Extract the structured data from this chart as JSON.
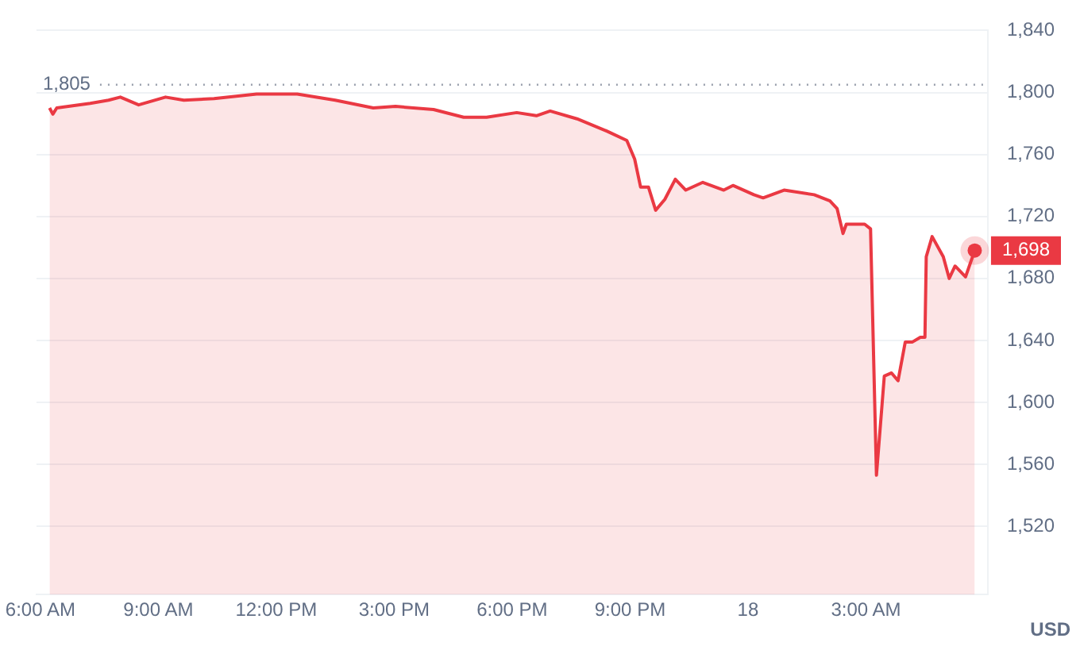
{
  "chart_data": {
    "type": "area",
    "x": [
      "--01-17T06:14",
      "--01-17T06:19",
      "--01-17T06:25",
      "--01-17T07:16",
      "--01-17T07:44",
      "--01-17T08:02",
      "--01-17T08:30",
      "--01-17T09:11",
      "--01-17T09:39",
      "--01-17T10:25",
      "--01-17T11:30",
      "--01-17T12:32",
      "--01-17T13:30",
      "--01-17T14:28",
      "--01-17T15:02",
      "--01-17T16:00",
      "--01-17T16:46",
      "--01-17T17:21",
      "--01-17T18:07",
      "--01-17T18:37",
      "--01-17T18:58",
      "--01-17T19:39",
      "--01-17T20:25",
      "--01-17T20:55",
      "--01-17T21:07",
      "--01-17T21:16",
      "--01-17T21:28",
      "--01-17T21:39",
      "--01-17T21:53",
      "--01-17T22:09",
      "--01-17T22:25",
      "--01-17T22:51",
      "--01-17T23:23",
      "--01-17T23:37",
      "--01-18T00:09",
      "--01-18T00:23",
      "--01-18T00:55",
      "--01-18T01:41",
      "--01-18T02:05",
      "--01-18T02:16",
      "--01-18T02:25",
      "--01-18T02:30",
      "--01-18T02:58",
      "--01-18T03:07",
      "--01-18T03:16",
      "--01-18T03:28",
      "--01-18T03:39",
      "--01-18T03:49",
      "--01-18T04:00",
      "--01-18T04:11",
      "--01-18T04:23",
      "--01-18T04:30",
      "--01-18T04:32",
      "--01-18T04:41",
      "--01-18T04:58",
      "--01-18T05:07",
      "--01-18T05:16",
      "--01-18T05:32",
      "--01-18T05:46"
    ],
    "series": [
      {
        "color": "#ea3943",
        "values": [
          1790,
          1786,
          1790,
          1793,
          1795,
          1797,
          1792,
          1797,
          1795,
          1796,
          1799,
          1799,
          1795,
          1790,
          1791,
          1789,
          1784,
          1784,
          1787,
          1785,
          1788,
          1783,
          1775,
          1769,
          1757,
          1739,
          1739,
          1724,
          1731,
          1744,
          1737,
          1742,
          1737,
          1740,
          1734,
          1732,
          1737,
          1734,
          1730,
          1725,
          1709,
          1715,
          1715,
          1712,
          1553,
          1617,
          1619,
          1614,
          1639,
          1639,
          1642,
          1642,
          1694,
          1707,
          1694,
          1680,
          1688,
          1681,
          1698
        ]
      }
    ],
    "xlim": [
      "--01-17T05:54",
      "--01-18T06:06"
    ],
    "ylim": [
      1476,
      1840
    ],
    "xticks": [
      {
        "value": "--01-17T06:00",
        "label": "6:00 AM"
      },
      {
        "value": "--01-17T09:00",
        "label": "9:00 AM"
      },
      {
        "value": "--01-17T12:00",
        "label": "12:00 PM"
      },
      {
        "value": "--01-17T15:00",
        "label": "3:00 PM"
      },
      {
        "value": "--01-17T18:00",
        "label": "6:00 PM"
      },
      {
        "value": "--01-17T21:00",
        "label": "9:00 PM"
      },
      {
        "value": "--01-18T00:00",
        "label": "18"
      },
      {
        "value": "--01-18T03:00",
        "label": "3:00 AM"
      }
    ],
    "yticks": [
      {
        "value": 1520,
        "label": "1,520"
      },
      {
        "value": 1560,
        "label": "1,560"
      },
      {
        "value": 1600,
        "label": "1,600"
      },
      {
        "value": 1640,
        "label": "1,640"
      },
      {
        "value": 1680,
        "label": "1,680"
      },
      {
        "value": 1720,
        "label": "1,720"
      },
      {
        "value": 1760,
        "label": "1,760"
      },
      {
        "value": 1800,
        "label": "1,800"
      },
      {
        "value": 1840,
        "label": "1,840"
      }
    ],
    "ref_lines": [
      {
        "axis": "y",
        "value": 1805,
        "label": "1,805",
        "line_style": "dotted",
        "color": "#9aa0ad"
      }
    ],
    "annotations": [
      {
        "text": "1,698",
        "x": "--01-18T05:46",
        "y": 1698
      },
      "USD"
    ],
    "grid": "y",
    "legend": false,
    "marker": "none",
    "line_style": "solid"
  }
}
